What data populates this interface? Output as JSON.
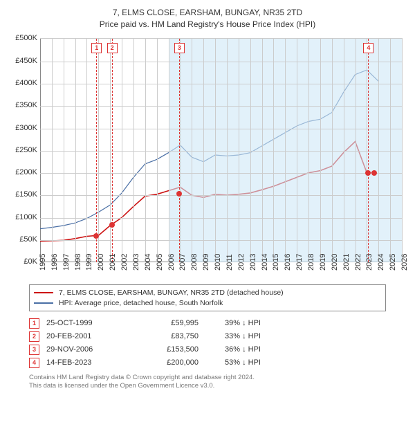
{
  "title": "7, ELMS CLOSE, EARSHAM, BUNGAY, NR35 2TD",
  "subtitle": "Price paid vs. HM Land Registry's House Price Index (HPI)",
  "chart": {
    "background_color": "#ffffff",
    "font_family": "Arial",
    "y": {
      "min": 0,
      "max": 500000,
      "step": 50000,
      "prefix": "£",
      "suffix": "K"
    },
    "x": {
      "min": 1995,
      "max": 2026,
      "step": 1
    },
    "grid_color": "#cccccc",
    "shade_color": "#cfe7f7",
    "shade_from_year": 2006,
    "series": [
      {
        "name": "7, ELMS CLOSE, EARSHAM, BUNGAY, NR35 2TD (detached house)",
        "color": "#cc1111",
        "width": 1.6,
        "points": [
          [
            1995,
            47000
          ],
          [
            1996,
            48000
          ],
          [
            1997,
            49000
          ],
          [
            1998,
            53000
          ],
          [
            1999,
            58000
          ],
          [
            2000,
            60000
          ],
          [
            2001,
            82000
          ],
          [
            2002,
            100000
          ],
          [
            2003,
            125000
          ],
          [
            2004,
            148000
          ],
          [
            2005,
            152000
          ],
          [
            2006,
            160000
          ],
          [
            2007,
            168000
          ],
          [
            2008,
            150000
          ],
          [
            2009,
            145000
          ],
          [
            2010,
            152000
          ],
          [
            2011,
            150000
          ],
          [
            2012,
            152000
          ],
          [
            2013,
            155000
          ],
          [
            2014,
            162000
          ],
          [
            2015,
            170000
          ],
          [
            2016,
            180000
          ],
          [
            2017,
            190000
          ],
          [
            2018,
            200000
          ],
          [
            2019,
            205000
          ],
          [
            2020,
            215000
          ],
          [
            2021,
            245000
          ],
          [
            2022,
            270000
          ],
          [
            2023,
            200000
          ],
          [
            2023.6,
            200000
          ]
        ]
      },
      {
        "name": "HPI: Average price, detached house, South Norfolk",
        "color": "#4a6fa5",
        "width": 1.2,
        "points": [
          [
            1995,
            75000
          ],
          [
            1996,
            78000
          ],
          [
            1997,
            82000
          ],
          [
            1998,
            88000
          ],
          [
            1999,
            98000
          ],
          [
            2000,
            112000
          ],
          [
            2001,
            128000
          ],
          [
            2002,
            155000
          ],
          [
            2003,
            190000
          ],
          [
            2004,
            220000
          ],
          [
            2005,
            230000
          ],
          [
            2006,
            245000
          ],
          [
            2007,
            262000
          ],
          [
            2008,
            235000
          ],
          [
            2009,
            225000
          ],
          [
            2010,
            240000
          ],
          [
            2011,
            238000
          ],
          [
            2012,
            240000
          ],
          [
            2013,
            245000
          ],
          [
            2014,
            260000
          ],
          [
            2015,
            275000
          ],
          [
            2016,
            290000
          ],
          [
            2017,
            305000
          ],
          [
            2018,
            315000
          ],
          [
            2019,
            320000
          ],
          [
            2020,
            335000
          ],
          [
            2021,
            380000
          ],
          [
            2022,
            420000
          ],
          [
            2023,
            430000
          ],
          [
            2024,
            405000
          ]
        ]
      }
    ],
    "markers": [
      {
        "num": "1",
        "year": 1999.82,
        "price": 59995
      },
      {
        "num": "2",
        "year": 2001.14,
        "price": 83750
      },
      {
        "num": "3",
        "year": 2006.91,
        "price": 153500
      },
      {
        "num": "4",
        "year": 2023.12,
        "price": 200000
      }
    ]
  },
  "legend": [
    {
      "color": "#cc1111",
      "label": "7, ELMS CLOSE, EARSHAM, BUNGAY, NR35 2TD (detached house)"
    },
    {
      "color": "#4a6fa5",
      "label": "HPI: Average price, detached house, South Norfolk"
    }
  ],
  "sales": [
    {
      "num": "1",
      "date": "25-OCT-1999",
      "price": "£59,995",
      "delta": "39% ↓ HPI"
    },
    {
      "num": "2",
      "date": "20-FEB-2001",
      "price": "£83,750",
      "delta": "33% ↓ HPI"
    },
    {
      "num": "3",
      "date": "29-NOV-2006",
      "price": "£153,500",
      "delta": "36% ↓ HPI"
    },
    {
      "num": "4",
      "date": "14-FEB-2023",
      "price": "£200,000",
      "delta": "53% ↓ HPI"
    }
  ],
  "footer": {
    "line1": "Contains HM Land Registry data © Crown copyright and database right 2024.",
    "line2": "This data is licensed under the Open Government Licence v3.0."
  }
}
